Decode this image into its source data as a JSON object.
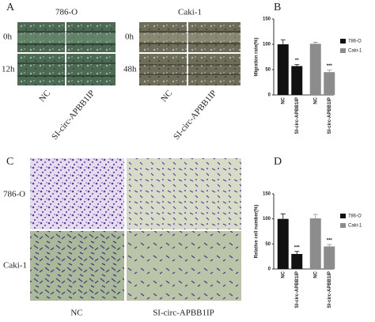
{
  "panel_a": {
    "label": "A",
    "columns": [
      "786-O",
      "Caki-1"
    ],
    "rows_left": [
      "0h",
      "12h"
    ],
    "rows_right": [
      "0h",
      "48h"
    ],
    "conditions": [
      "NC",
      "SI-circ-APBB1IP"
    ]
  },
  "panel_c": {
    "label": "C",
    "rows": [
      "786-O",
      "Caki-1"
    ],
    "conditions": [
      "NC",
      "SI-circ-APBB1IP"
    ]
  },
  "chart_data": [
    {
      "type": "bar",
      "label": "B",
      "ylabel": "Migration rate(%)",
      "categories": [
        "NC",
        "SI-circ-APBB1IP",
        "NC",
        "SI-circ-APBB1IP"
      ],
      "series": [
        {
          "name": "786-O",
          "color": "#111111",
          "values": [
            100,
            57,
            null,
            null
          ],
          "errors": [
            9,
            3,
            null,
            null
          ]
        },
        {
          "name": "Caki-1",
          "color": "#8c8c8c",
          "values": [
            null,
            null,
            101,
            45
          ],
          "errors": [
            null,
            null,
            3,
            4
          ]
        }
      ],
      "value_annotations": [
        null,
        "**",
        null,
        "***"
      ],
      "ylim": [
        0,
        150
      ],
      "yticks": [
        0,
        50,
        100,
        150
      ],
      "legend": "right"
    },
    {
      "type": "bar",
      "label": "D",
      "ylabel": "Relative cell number(%)",
      "categories": [
        "NC",
        "SI-circ-APBB1IP",
        "NC",
        "SI-circ-APBB1IP"
      ],
      "series": [
        {
          "name": "786-O",
          "color": "#111111",
          "values": [
            100,
            30,
            null,
            null
          ],
          "errors": [
            10,
            5,
            null,
            null
          ]
        },
        {
          "name": "Caki-1",
          "color": "#8c8c8c",
          "values": [
            null,
            null,
            101,
            45
          ],
          "errors": [
            null,
            null,
            8,
            4
          ]
        }
      ],
      "value_annotations": [
        null,
        "***",
        null,
        "***"
      ],
      "ylim": [
        0,
        150
      ],
      "yticks": [
        0,
        50,
        100,
        150
      ],
      "legend": "right"
    }
  ]
}
